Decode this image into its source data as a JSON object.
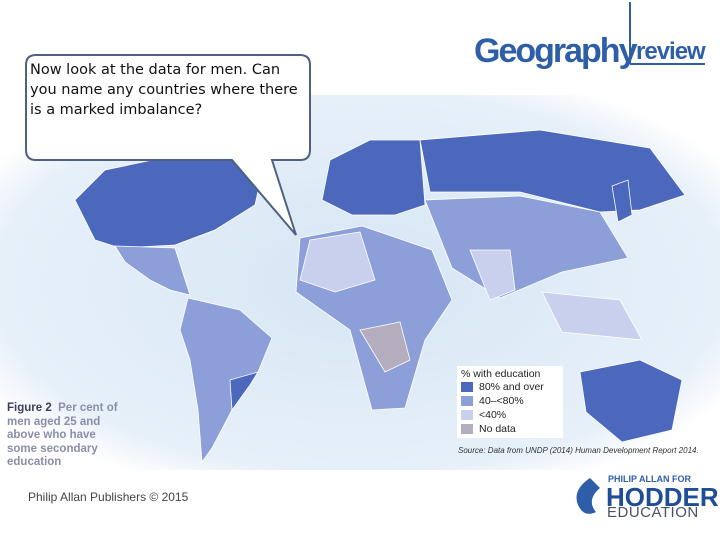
{
  "callout": {
    "text": "Now look at the data for men. Can you name any countries where there is a marked imbalance?"
  },
  "header": {
    "logo_main": "Geography",
    "logo_sub": "review"
  },
  "figure": {
    "label": "Figure 2",
    "caption_start": "Per cent",
    "caption_rest": "of men aged 25 and above who have some secondary education"
  },
  "legend": {
    "title": "% with education",
    "items": [
      {
        "name": "80% and over",
        "color": "#4b68bd"
      },
      {
        "name": "40–<80%",
        "color": "#8c9fd8"
      },
      {
        "name": "<40%",
        "color": "#c9d0ee"
      },
      {
        "name": "No data",
        "color": "#b3adbd"
      }
    ]
  },
  "source": "Source: Data from UNDP (2014) Human Development Report 2014.",
  "footer": {
    "copyright": "Philip Allan Publishers © 2015",
    "publisher_top": "PHILIP ALLAN FOR",
    "publisher_main": "HODDER",
    "publisher_sub": "EDUCATION"
  }
}
